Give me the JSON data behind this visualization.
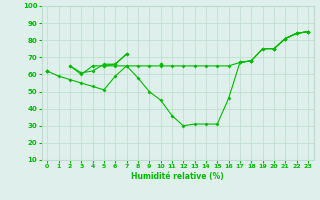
{
  "bg_color": "#dff0ec",
  "grid_color": "#bbddcc",
  "line_color": "#00bb00",
  "xlabel": "Humidité relative (%)",
  "ylim": [
    10,
    100
  ],
  "xlim": [
    -0.5,
    23.5
  ],
  "yticks": [
    10,
    20,
    30,
    40,
    50,
    60,
    70,
    80,
    90,
    100
  ],
  "xticks": [
    0,
    1,
    2,
    3,
    4,
    5,
    6,
    7,
    8,
    9,
    10,
    11,
    12,
    13,
    14,
    15,
    16,
    17,
    18,
    19,
    20,
    21,
    22,
    23
  ],
  "x": [
    0,
    1,
    2,
    3,
    4,
    5,
    6,
    7,
    8,
    9,
    10,
    11,
    12,
    13,
    14,
    15,
    16,
    17,
    18,
    19,
    20,
    21,
    22,
    23
  ],
  "y_dip": [
    62,
    59,
    57,
    55,
    53,
    51,
    59,
    65,
    58,
    50,
    45,
    36,
    30,
    31,
    31,
    31,
    46,
    67,
    68,
    75,
    75,
    81,
    84,
    85
  ],
  "y_upper1": [
    62,
    null,
    65,
    61,
    62,
    66,
    66,
    72,
    null,
    null,
    66,
    null,
    null,
    null,
    null,
    null,
    null,
    67,
    68,
    null,
    75,
    81,
    84,
    85
  ],
  "y_upper2": [
    62,
    null,
    65,
    60,
    65,
    65,
    66,
    72,
    null,
    null,
    66,
    null,
    null,
    null,
    null,
    null,
    null,
    null,
    68,
    null,
    null,
    81,
    84,
    85
  ],
  "y_upper3": [
    62,
    null,
    null,
    null,
    null,
    65,
    65,
    65,
    65,
    65,
    65,
    65,
    65,
    65,
    65,
    65,
    65,
    67,
    68,
    75,
    75,
    81,
    84,
    85
  ]
}
